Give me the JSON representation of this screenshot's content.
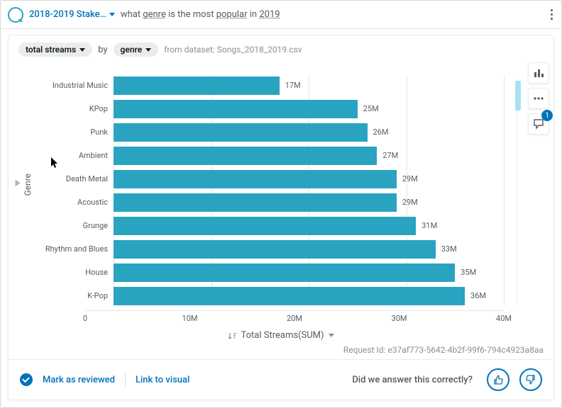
{
  "header": {
    "title": "2018-2019 Stake…",
    "query_prefix": "what ",
    "query_kw1": "genre",
    "query_mid": " is the most ",
    "query_kw2": "popular",
    "query_mid2": " in ",
    "query_kw3": "2019"
  },
  "filters": {
    "measure": "total streams",
    "by": "by",
    "dimension": "genre",
    "dataset_label": "from dataset: Songs_2018_2019.csv"
  },
  "chart": {
    "type": "bar-horizontal",
    "y_axis_label": "Genre",
    "x_axis_label": "Total Streams(SUM)",
    "bar_color": "#2aa3c0",
    "background_color": "#ffffff",
    "grid_color": "#e6e6e6",
    "xlim_max": 40,
    "xticks": [
      {
        "pos": 0,
        "label": "0"
      },
      {
        "pos": 25,
        "label": "10M"
      },
      {
        "pos": 50,
        "label": "20M"
      },
      {
        "pos": 75,
        "label": "30M"
      },
      {
        "pos": 100,
        "label": "40M"
      }
    ],
    "bars": [
      {
        "label": "Industrial Music",
        "value": 17,
        "display": "17M"
      },
      {
        "label": "KPop",
        "value": 25,
        "display": "25M"
      },
      {
        "label": "Punk",
        "value": 26,
        "display": "26M"
      },
      {
        "label": "Ambient",
        "value": 27,
        "display": "27M"
      },
      {
        "label": "Death Metal",
        "value": 29,
        "display": "29M"
      },
      {
        "label": "Acoustic",
        "value": 29,
        "display": "29M"
      },
      {
        "label": "Grunge",
        "value": 31,
        "display": "31M"
      },
      {
        "label": "Rhythm and Blues",
        "value": 33,
        "display": "33M"
      },
      {
        "label": "House",
        "value": 35,
        "display": "35M"
      },
      {
        "label": "K-Pop",
        "value": 36,
        "display": "36M"
      }
    ]
  },
  "tools": {
    "comment_count": "1"
  },
  "request_id": "Request Id: e37af773-5642-4b2f-99f6-794c4923a8aa",
  "footer": {
    "mark": "Mark as reviewed",
    "link_visual": "Link to visual",
    "feedback_q": "Did we answer this correctly?"
  }
}
